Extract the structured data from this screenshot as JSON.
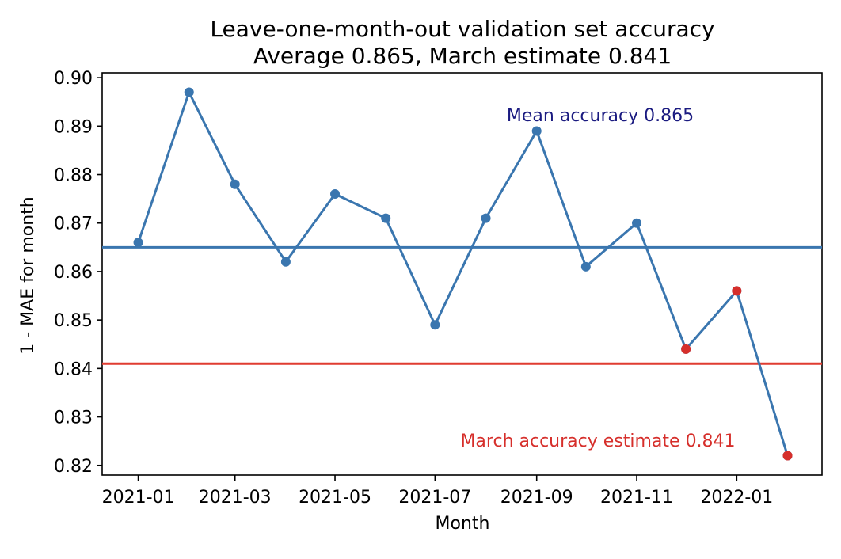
{
  "chart_data": {
    "type": "line",
    "title": "Leave-one-month-out validation set accuracy",
    "subtitle": "Average 0.865, March estimate 0.841",
    "xlabel": "Month",
    "ylabel": "1 - MAE for month",
    "x": [
      "2021-01",
      "2021-02",
      "2021-03",
      "2021-04",
      "2021-05",
      "2021-06",
      "2021-07",
      "2021-08",
      "2021-09",
      "2021-10",
      "2021-11",
      "2021-12",
      "2022-01",
      "2022-02"
    ],
    "series": [
      {
        "values": [
          0.866,
          0.897,
          0.878,
          0.862,
          0.876,
          0.871,
          0.849,
          0.871,
          0.889,
          0.861,
          0.87,
          0.844,
          0.856,
          0.822
        ],
        "color": "#3a76af"
      }
    ],
    "highlighted_points": [
      {
        "x": "2021-12",
        "y": 0.844
      },
      {
        "x": "2022-01",
        "y": 0.856
      },
      {
        "x": "2022-02",
        "y": 0.822
      }
    ],
    "highlight_color": "#d62f2b",
    "reference_lines": [
      {
        "y": 0.865,
        "color": "#3a76af",
        "label": "Mean accuracy 0.865",
        "label_color": "#1a1a80"
      },
      {
        "y": 0.841,
        "color": "#e03c31",
        "label": "March accuracy estimate 0.841",
        "label_color": "#d62f2b"
      }
    ],
    "x_ticks": [
      "2021-01",
      "2021-03",
      "2021-05",
      "2021-07",
      "2021-09",
      "2021-11",
      "2022-01"
    ],
    "y_ticks": [
      0.82,
      0.83,
      0.84,
      0.85,
      0.86,
      0.87,
      0.88,
      0.89,
      0.9
    ],
    "y_tick_labels": [
      "0.82",
      "0.83",
      "0.84",
      "0.85",
      "0.86",
      "0.87",
      "0.88",
      "0.89",
      "0.90"
    ],
    "ylim": [
      0.818,
      0.901
    ],
    "xlim": [
      "2020-12-10",
      "2022-02-22"
    ],
    "grid": false,
    "legend": "none"
  }
}
